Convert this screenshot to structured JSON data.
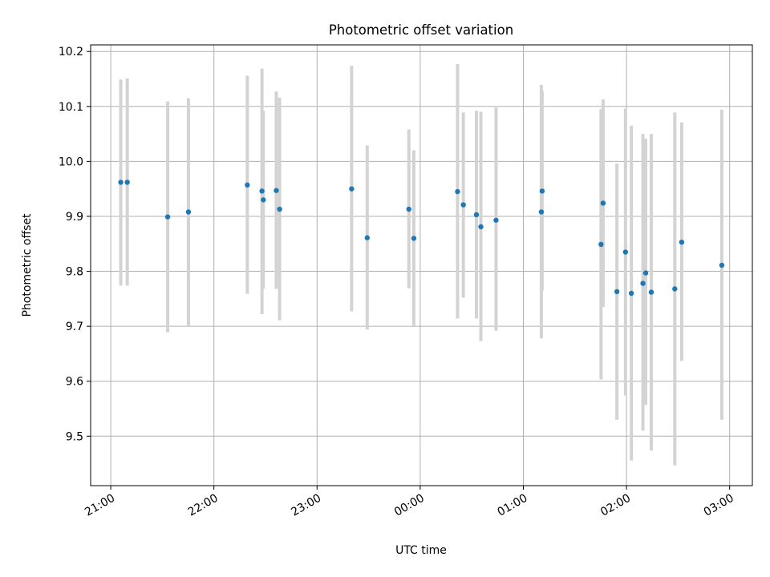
{
  "chart_data": {
    "type": "scatter",
    "title": "Photometric offset variation",
    "xlabel": "UTC time",
    "ylabel": "Photometric offset",
    "x_tick_labels": [
      "21:00",
      "22:00",
      "23:00",
      "00:00",
      "01:00",
      "02:00",
      "03:00"
    ],
    "x_tick_hours": [
      21,
      22,
      23,
      24,
      25,
      26,
      27
    ],
    "xlim_hours": [
      20.805,
      27.22
    ],
    "y_ticks": [
      9.5,
      9.6,
      9.7,
      9.8,
      9.9,
      10.0,
      10.1,
      10.2
    ],
    "y_tick_labels": [
      "9.5",
      "9.6",
      "9.7",
      "9.8",
      "9.9",
      "10.0",
      "10.1",
      "10.2"
    ],
    "ylim": [
      9.41,
      10.212
    ],
    "grid": true,
    "points": [
      {
        "t": 21.097,
        "y": 9.962,
        "lo": 9.774,
        "hi": 10.149
      },
      {
        "t": 21.16,
        "y": 9.962,
        "lo": 9.774,
        "hi": 10.151
      },
      {
        "t": 21.552,
        "y": 9.899,
        "lo": 9.689,
        "hi": 10.109
      },
      {
        "t": 21.753,
        "y": 9.908,
        "lo": 9.7,
        "hi": 10.115
      },
      {
        "t": 22.324,
        "y": 9.957,
        "lo": 9.759,
        "hi": 10.156
      },
      {
        "t": 22.466,
        "y": 9.946,
        "lo": 9.722,
        "hi": 10.169
      },
      {
        "t": 22.479,
        "y": 9.93,
        "lo": 9.768,
        "hi": 10.092
      },
      {
        "t": 22.605,
        "y": 9.947,
        "lo": 9.768,
        "hi": 10.127
      },
      {
        "t": 22.637,
        "y": 9.913,
        "lo": 9.711,
        "hi": 10.116
      },
      {
        "t": 23.335,
        "y": 9.95,
        "lo": 9.727,
        "hi": 10.174
      },
      {
        "t": 23.486,
        "y": 9.861,
        "lo": 9.694,
        "hi": 10.029
      },
      {
        "t": 23.89,
        "y": 9.913,
        "lo": 9.769,
        "hi": 10.058
      },
      {
        "t": 23.938,
        "y": 9.86,
        "lo": 9.701,
        "hi": 10.02
      },
      {
        "t": 24.362,
        "y": 9.945,
        "lo": 9.714,
        "hi": 10.177
      },
      {
        "t": 24.418,
        "y": 9.921,
        "lo": 9.752,
        "hi": 10.089
      },
      {
        "t": 24.545,
        "y": 9.903,
        "lo": 9.714,
        "hi": 10.092
      },
      {
        "t": 24.588,
        "y": 9.881,
        "lo": 9.673,
        "hi": 10.09
      },
      {
        "t": 24.735,
        "y": 9.893,
        "lo": 9.692,
        "hi": 10.098
      },
      {
        "t": 25.174,
        "y": 9.908,
        "lo": 9.678,
        "hi": 10.139
      },
      {
        "t": 25.182,
        "y": 9.946,
        "lo": 9.765,
        "hi": 10.128
      },
      {
        "t": 25.753,
        "y": 9.849,
        "lo": 9.603,
        "hi": 10.095
      },
      {
        "t": 25.773,
        "y": 9.924,
        "lo": 9.735,
        "hi": 10.113
      },
      {
        "t": 25.907,
        "y": 9.763,
        "lo": 9.53,
        "hi": 9.996
      },
      {
        "t": 25.99,
        "y": 9.835,
        "lo": 9.574,
        "hi": 10.096
      },
      {
        "t": 26.047,
        "y": 9.76,
        "lo": 9.456,
        "hi": 10.065
      },
      {
        "t": 26.159,
        "y": 9.778,
        "lo": 9.51,
        "hi": 10.05
      },
      {
        "t": 26.186,
        "y": 9.797,
        "lo": 9.557,
        "hi": 10.041
      },
      {
        "t": 26.24,
        "y": 9.762,
        "lo": 9.474,
        "hi": 10.05
      },
      {
        "t": 26.468,
        "y": 9.768,
        "lo": 9.447,
        "hi": 10.089
      },
      {
        "t": 26.535,
        "y": 9.853,
        "lo": 9.637,
        "hi": 10.071
      },
      {
        "t": 26.924,
        "y": 9.811,
        "lo": 9.53,
        "hi": 10.094
      }
    ],
    "colors": {
      "point": "#1f77b4",
      "error_bar": "#d3d3d3",
      "grid": "#b0b0b0"
    }
  }
}
